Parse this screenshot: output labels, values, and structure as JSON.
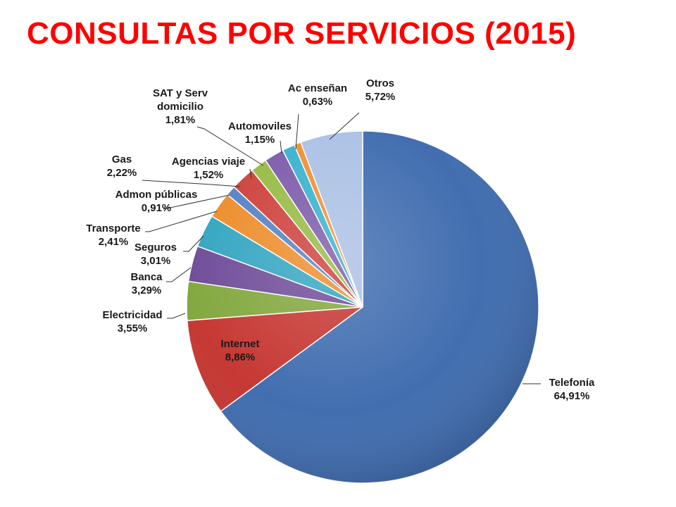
{
  "slide": {
    "title": "CONSULTAS POR SERVICIOS (2015)",
    "title_color": "#ff0000"
  },
  "chart_data": {
    "type": "pie",
    "title": "",
    "start_angle_deg": 0,
    "direction": "clockwise",
    "legend": "none",
    "data_labels": "outside-with-leader-lines",
    "slices": [
      {
        "label": "Telefonía",
        "value": 64.91,
        "display": "64,91%",
        "color": "#3a68ad"
      },
      {
        "label": "Internet",
        "value": 8.86,
        "display": "8,86%",
        "color": "#c4302b"
      },
      {
        "label": "Electricidad",
        "value": 3.55,
        "display": "3,55%",
        "color": "#7ea538"
      },
      {
        "label": "Banca",
        "value": 3.29,
        "display": "3,29%",
        "color": "#6b4796"
      },
      {
        "label": "Seguros",
        "value": 3.01,
        "display": "3,01%",
        "color": "#2ea3bf"
      },
      {
        "label": "Transporte",
        "value": 2.41,
        "display": "2,41%",
        "color": "#ec8a25"
      },
      {
        "label": "Admon públicas",
        "value": 0.91,
        "display": "0,91%",
        "color": "#4f7fc4"
      },
      {
        "label": "Gas",
        "value": 2.22,
        "display": "2,22%",
        "color": "#cc3b36"
      },
      {
        "label": "Agencias viaje",
        "value": 1.52,
        "display": "1,52%",
        "color": "#93b93f"
      },
      {
        "label": "SAT y Serv domicilio",
        "value": 1.81,
        "display": "1,81%",
        "color": "#7a56a8"
      },
      {
        "label": "Automoviles",
        "value": 1.15,
        "display": "1,15%",
        "color": "#33afce"
      },
      {
        "label": "Ac enseñan",
        "value": 0.63,
        "display": "0,63%",
        "color": "#f08c2c"
      },
      {
        "label": "Otros",
        "value": 5.72,
        "display": "5,72%",
        "color": "#a9bfe4"
      }
    ]
  }
}
